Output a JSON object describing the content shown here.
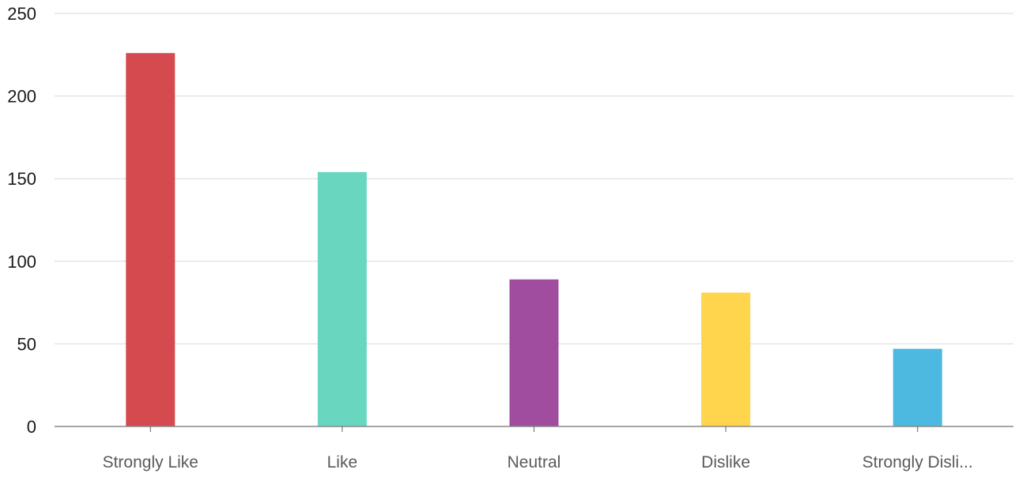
{
  "chart_data": {
    "type": "bar",
    "title": "",
    "xlabel": "",
    "ylabel": "",
    "categories": [
      "Strongly Like",
      "Like",
      "Neutral",
      "Dislike",
      "Strongly Disli..."
    ],
    "values": [
      226,
      154,
      89,
      81,
      47
    ],
    "colors": [
      "#d54a4e",
      "#69d7bf",
      "#a04c9f",
      "#fed54d",
      "#4db8e0"
    ],
    "ylim": [
      0,
      250
    ],
    "yticks": [
      0,
      50,
      100,
      150,
      200,
      250
    ],
    "grid": true,
    "legend": "none"
  }
}
